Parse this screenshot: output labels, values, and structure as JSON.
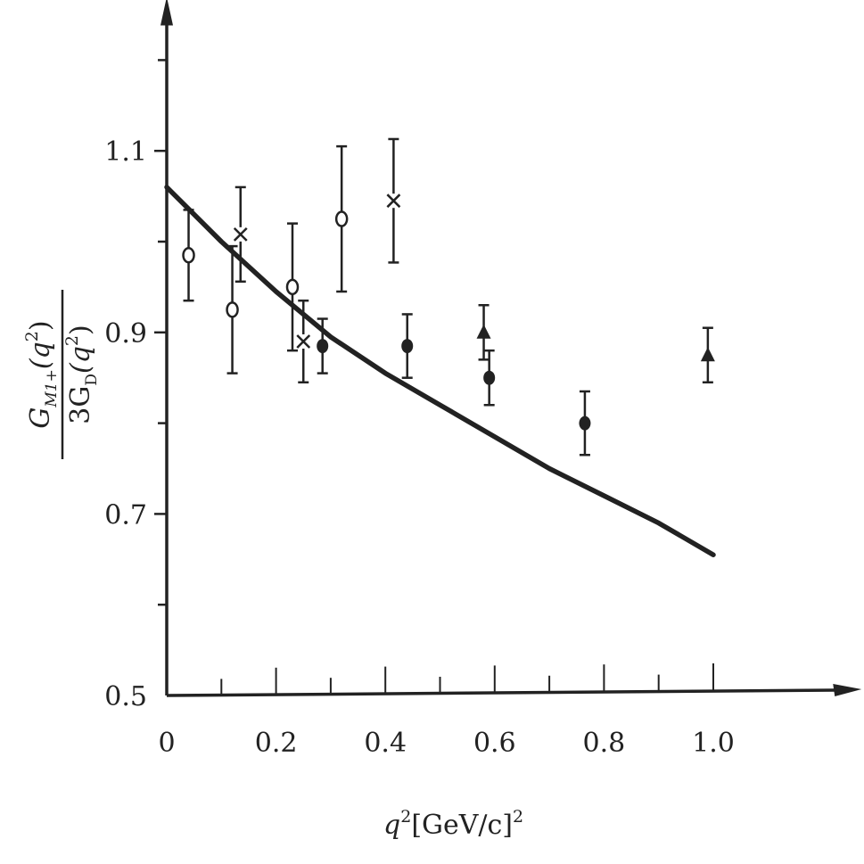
{
  "chart_data": {
    "type": "scatter",
    "title": "",
    "xlabel": {
      "main": "q",
      "sup": "2",
      "unit": "[GeV/c]",
      "unit_sup": "2"
    },
    "ylabel": {
      "numerator": {
        "main": "G",
        "sub": "M1+",
        "arg": "(q",
        "arg_sup": "2",
        "close": ")"
      },
      "denominator": {
        "main": "3G",
        "sub": "D",
        "arg": "(q",
        "arg_sup": "2",
        "close": ")"
      }
    },
    "xlim": [
      0,
      1.25
    ],
    "ylim": [
      0.5,
      1.25
    ],
    "x_ticks": [
      {
        "value": 0,
        "label": "0"
      },
      {
        "value": 0.2,
        "label": "0.2"
      },
      {
        "value": 0.4,
        "label": "0.4"
      },
      {
        "value": 0.6,
        "label": "0.6"
      },
      {
        "value": 0.8,
        "label": "0.8"
      },
      {
        "value": 1.0,
        "label": "1.0"
      }
    ],
    "x_minor_ticks": [
      0.1,
      0.3,
      0.5,
      0.7,
      0.9
    ],
    "y_ticks": [
      {
        "value": 0.5,
        "label": "0.5"
      },
      {
        "value": 0.7,
        "label": "0.7"
      },
      {
        "value": 0.9,
        "label": "0.9"
      },
      {
        "value": 1.1,
        "label": "1.1"
      }
    ],
    "y_minor_ticks": [
      0.6,
      0.8,
      1.0,
      1.2
    ],
    "grid": false,
    "legend": "none",
    "series": [
      {
        "marker": "open-circle",
        "points": [
          {
            "x": 0.04,
            "y": 0.985,
            "err": 0.05
          },
          {
            "x": 0.12,
            "y": 0.925,
            "err": 0.07
          },
          {
            "x": 0.23,
            "y": 0.95,
            "err": 0.07
          },
          {
            "x": 0.32,
            "y": 1.025,
            "err": 0.08
          }
        ]
      },
      {
        "marker": "cross",
        "points": [
          {
            "x": 0.135,
            "y": 1.008,
            "err": 0.052
          },
          {
            "x": 0.25,
            "y": 0.89,
            "err": 0.045
          },
          {
            "x": 0.415,
            "y": 1.045,
            "err": 0.068
          }
        ]
      },
      {
        "marker": "filled-circle",
        "points": [
          {
            "x": 0.285,
            "y": 0.885,
            "err": 0.03
          },
          {
            "x": 0.44,
            "y": 0.885,
            "err": 0.035
          },
          {
            "x": 0.59,
            "y": 0.85,
            "err": 0.03
          },
          {
            "x": 0.765,
            "y": 0.8,
            "err": 0.035
          }
        ]
      },
      {
        "marker": "filled-triangle",
        "points": [
          {
            "x": 0.58,
            "y": 0.9,
            "err": 0.03
          },
          {
            "x": 0.99,
            "y": 0.875,
            "err": 0.03
          }
        ]
      }
    ],
    "curve": {
      "style": "solid",
      "points": [
        {
          "x": 0.0,
          "y": 1.06
        },
        {
          "x": 0.1,
          "y": 1.0
        },
        {
          "x": 0.2,
          "y": 0.945
        },
        {
          "x": 0.3,
          "y": 0.895
        },
        {
          "x": 0.4,
          "y": 0.855
        },
        {
          "x": 0.5,
          "y": 0.82
        },
        {
          "x": 0.6,
          "y": 0.785
        },
        {
          "x": 0.7,
          "y": 0.75
        },
        {
          "x": 0.8,
          "y": 0.72
        },
        {
          "x": 0.9,
          "y": 0.69
        },
        {
          "x": 1.0,
          "y": 0.655
        }
      ]
    },
    "colors": {
      "ink": "#222222",
      "background": "#ffffff"
    }
  }
}
